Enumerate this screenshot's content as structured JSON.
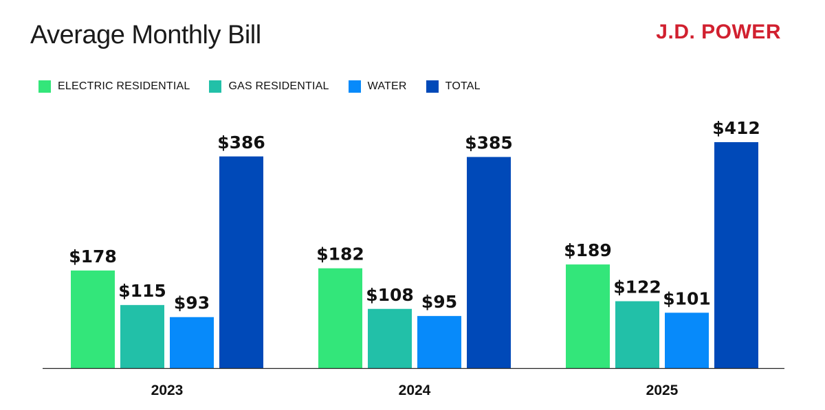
{
  "header": {
    "title": "Average Monthly Bill",
    "brand": "J.D. POWER"
  },
  "colors": {
    "electric": "#33e67a",
    "gas": "#22c0a8",
    "water": "#078afa",
    "total": "#0049b8",
    "brand": "#d1202f"
  },
  "chart_data": {
    "type": "bar",
    "title": "Average Monthly Bill",
    "categories": [
      "2023",
      "2024",
      "2025"
    ],
    "series": [
      {
        "name": "ELECTRIC RESIDENTIAL",
        "color": "#33e67a",
        "values": [
          178,
          182,
          189
        ],
        "labels": [
          "$178",
          "$182",
          "$189"
        ]
      },
      {
        "name": "GAS RESIDENTIAL",
        "color": "#22c0a8",
        "values": [
          115,
          108,
          122
        ],
        "labels": [
          "$115",
          "$108",
          "$122"
        ]
      },
      {
        "name": "WATER",
        "color": "#078afa",
        "values": [
          93,
          95,
          101
        ],
        "labels": [
          "$93",
          "$95",
          "$101"
        ]
      },
      {
        "name": "TOTAL",
        "color": "#0049b8",
        "values": [
          386,
          385,
          412
        ],
        "labels": [
          "$386",
          "$385",
          "$412"
        ]
      }
    ],
    "xlabel": "",
    "ylabel": "",
    "ylim": [
      0,
      412
    ],
    "grid": false,
    "legend": "top-left"
  }
}
